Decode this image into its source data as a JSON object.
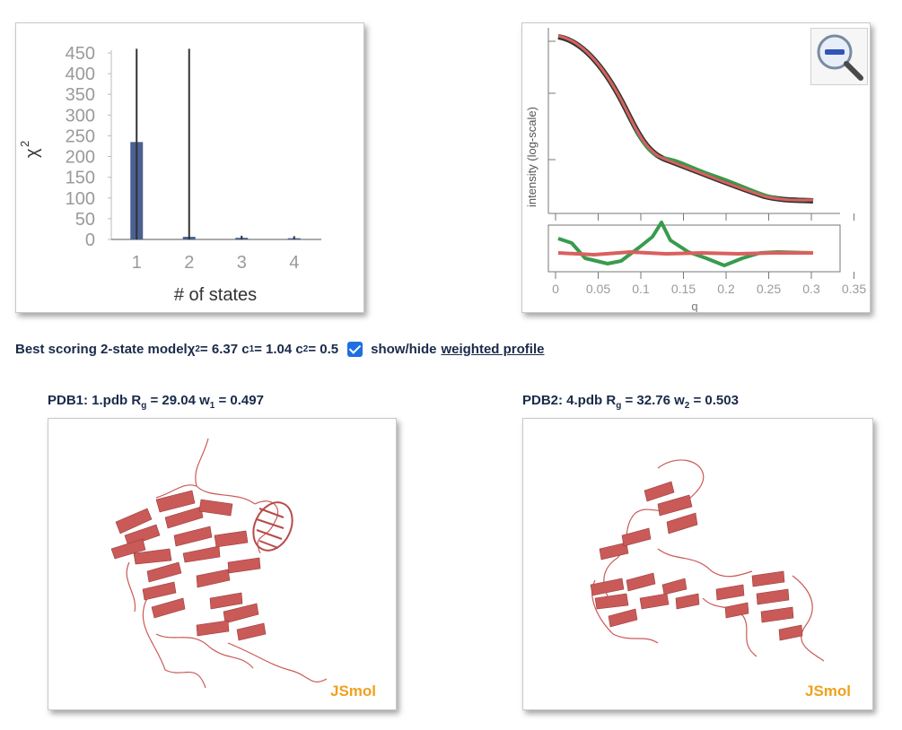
{
  "chi_chart": {
    "chart_data": {
      "type": "bar",
      "categories": [
        "1",
        "2",
        "3",
        "4"
      ],
      "values": [
        235,
        6.37,
        4,
        3
      ],
      "error_top": [
        460,
        460,
        9,
        8
      ],
      "xlabel": "# of states",
      "ylabel": "χ",
      "ylabel_sup": "2",
      "yticks": [
        "450",
        "400",
        "350",
        "300",
        "250",
        "200",
        "150",
        "100",
        "50",
        "0"
      ],
      "ylim": [
        0,
        450
      ],
      "bar_color": "#4b6191"
    }
  },
  "profile_chart": {
    "ylabel": "intensity (log-scale)",
    "xlabel": "q",
    "xticks": [
      "0",
      "0.05",
      "0.1",
      "0.15",
      "0.2",
      "0.25",
      "0.3",
      "0.35"
    ],
    "series_colors": {
      "experimental": "#333333",
      "fit1": "#3a9a4e",
      "fit2": "#d9605e"
    }
  },
  "summary": {
    "prefix": "Best scoring 2-state model ",
    "chi": "χ",
    "chi_sup": "2",
    "chi_val": " = 6.37 c",
    "c1_sub": "1",
    "c1_val": " = 1.04 c",
    "c2_sub": "2",
    "c2_val": " = 0.5",
    "toggle_label": "show/hide",
    "link": "weighted profile"
  },
  "pdb1": {
    "prefix": "PDB1: 1.pdb R",
    "rg_sub": "g",
    "mid": " = 29.04 w",
    "w_sub": "1",
    "suffix": " = 0.497",
    "logo": "JSmol"
  },
  "pdb2": {
    "prefix": "PDB2: 4.pdb R",
    "rg_sub": "g",
    "mid": " = 32.76 w",
    "w_sub": "2",
    "suffix": " = 0.503",
    "logo": "JSmol"
  },
  "colors": {
    "protein": "#c95a58",
    "accent": "#1e6fe0",
    "text": "#1a2a4a",
    "jsmol": "#f0a21e"
  }
}
